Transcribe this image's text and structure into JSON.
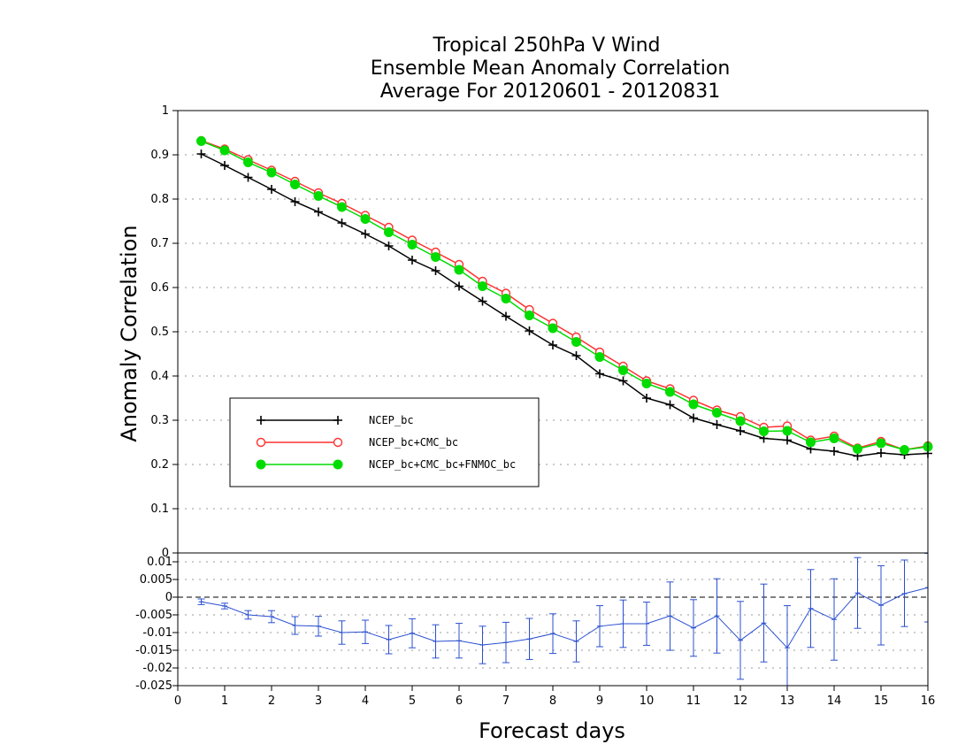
{
  "chart_data": {
    "type": "line",
    "title": [
      "Tropical 250hPa V Wind",
      "Ensemble Mean Anomaly Correlation",
      "Average For 20120601 - 20120831"
    ],
    "xlabel": "Forecast days",
    "ylabel": "Anomaly Correlation",
    "xlim": [
      0,
      16
    ],
    "xticks": [
      "0",
      "1",
      "2",
      "3",
      "4",
      "5",
      "6",
      "7",
      "8",
      "9",
      "10",
      "11",
      "12",
      "13",
      "14",
      "15",
      "16"
    ],
    "grid": true,
    "legend_position": "lower-left",
    "main_panel": {
      "ylim": [
        0,
        1
      ],
      "yticks": [
        "0",
        "0.1",
        "0.2",
        "0.3",
        "0.4",
        "0.5",
        "0.6",
        "0.7",
        "0.8",
        "0.9",
        "1"
      ],
      "x": [
        0.5,
        1,
        1.5,
        2,
        2.5,
        3,
        3.5,
        4,
        4.5,
        5,
        5.5,
        6,
        6.5,
        7,
        7.5,
        8,
        8.5,
        9,
        9.5,
        10,
        10.5,
        11,
        11.5,
        12,
        12.5,
        13,
        13.5,
        14,
        14.5,
        15,
        15.5,
        16
      ],
      "series": [
        {
          "name": "NCEP_bc",
          "color": "#000000",
          "marker": "plus",
          "values": [
            0.902,
            0.876,
            0.849,
            0.822,
            0.794,
            0.771,
            0.746,
            0.721,
            0.694,
            0.662,
            0.638,
            0.603,
            0.569,
            0.535,
            0.502,
            0.47,
            0.446,
            0.405,
            0.389,
            0.35,
            0.335,
            0.305,
            0.29,
            0.276,
            0.259,
            0.255,
            0.235,
            0.23,
            0.219,
            0.226,
            0.222,
            0.225
          ]
        },
        {
          "name": "NCEP_bc+CMC_bc",
          "color": "#ff3030",
          "marker": "open-circle",
          "values": [
            0.932,
            0.913,
            0.889,
            0.865,
            0.84,
            0.814,
            0.79,
            0.763,
            0.736,
            0.707,
            0.68,
            0.652,
            0.614,
            0.587,
            0.55,
            0.519,
            0.488,
            0.454,
            0.422,
            0.389,
            0.371,
            0.345,
            0.323,
            0.308,
            0.284,
            0.287,
            0.255,
            0.264,
            0.237,
            0.252,
            0.233,
            0.242
          ]
        },
        {
          "name": "NCEP_bc+CMC_bc+FNMOC_bc",
          "color": "#00dc00",
          "marker": "filled-circle",
          "values": [
            0.931,
            0.91,
            0.883,
            0.86,
            0.833,
            0.807,
            0.782,
            0.755,
            0.725,
            0.697,
            0.669,
            0.64,
            0.603,
            0.575,
            0.537,
            0.508,
            0.477,
            0.443,
            0.413,
            0.383,
            0.364,
            0.336,
            0.317,
            0.298,
            0.275,
            0.276,
            0.25,
            0.259,
            0.235,
            0.248,
            0.233,
            0.24
          ]
        }
      ]
    },
    "diff_panel": {
      "ylim": [
        -0.025,
        0.0125
      ],
      "yticks": [
        "0.01",
        "0.005",
        "0",
        "-0.005",
        "-0.01",
        "-0.015",
        "-0.02",
        "-0.025"
      ],
      "color": "#2a4fd0",
      "values": [
        -0.0013,
        -0.0025,
        -0.005,
        -0.0055,
        -0.008,
        -0.0082,
        -0.01,
        -0.0098,
        -0.012,
        -0.0102,
        -0.0125,
        -0.0123,
        -0.0135,
        -0.0128,
        -0.0118,
        -0.0103,
        -0.0125,
        -0.0082,
        -0.0075,
        -0.0075,
        -0.0053,
        -0.0087,
        -0.0053,
        -0.0122,
        -0.0073,
        -0.0143,
        -0.0032,
        -0.0063,
        0.0012,
        -0.0023,
        0.001,
        0.0027
      ],
      "err_low": [
        -0.0021,
        -0.0033,
        -0.0062,
        -0.0072,
        -0.0105,
        -0.011,
        -0.0133,
        -0.0131,
        -0.016,
        -0.0143,
        -0.0172,
        -0.0172,
        -0.0188,
        -0.0185,
        -0.0176,
        -0.0159,
        -0.0183,
        -0.014,
        -0.0142,
        -0.0136,
        -0.015,
        -0.0167,
        -0.0158,
        -0.0232,
        -0.0183,
        -0.0262,
        -0.0142,
        -0.0178,
        -0.0088,
        -0.0135,
        -0.0083,
        -0.007
      ],
      "err_high": [
        -0.0005,
        -0.0017,
        -0.0038,
        -0.0038,
        -0.0055,
        -0.0054,
        -0.0067,
        -0.0065,
        -0.008,
        -0.0061,
        -0.0078,
        -0.0074,
        -0.0082,
        -0.0071,
        -0.006,
        -0.0047,
        -0.0067,
        -0.0024,
        -0.0008,
        -0.0014,
        0.0043,
        -0.0007,
        0.0052,
        -0.0012,
        0.0037,
        -0.0024,
        0.0078,
        0.0052,
        0.0112,
        0.0089,
        0.0105,
        0.0124
      ]
    }
  }
}
